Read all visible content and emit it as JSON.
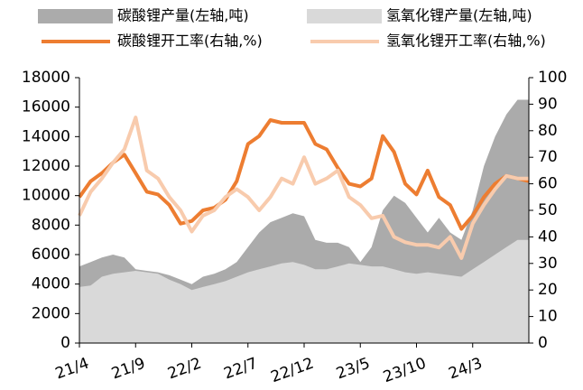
{
  "chart_data": {
    "type": "area-line",
    "categories": [
      "21/4",
      null,
      null,
      null,
      null,
      "21/9",
      null,
      null,
      null,
      null,
      "22/2",
      null,
      null,
      null,
      null,
      "22/7",
      null,
      null,
      null,
      null,
      "22/12",
      null,
      null,
      null,
      null,
      "23/5",
      null,
      null,
      null,
      null,
      "23/10",
      null,
      null,
      null,
      null,
      "24/3",
      null,
      null,
      null,
      null,
      null
    ],
    "series": [
      {
        "name": "碳酸锂产量(左轴,吨)",
        "kind": "area",
        "color": "#ababab",
        "axis": "y",
        "values": [
          5200,
          5500,
          5800,
          6000,
          5800,
          5000,
          4900,
          4800,
          4600,
          4300,
          4000,
          4500,
          4700,
          5000,
          5500,
          6500,
          7500,
          8200,
          8500,
          8800,
          8600,
          7000,
          6800,
          6800,
          6500,
          5500,
          6500,
          9000,
          10000,
          9500,
          8500,
          7500,
          8500,
          7500,
          7000,
          9000,
          12000,
          14000,
          15500,
          16500,
          16500
        ]
      },
      {
        "name": "氢氧化锂产量(左轴,吨)",
        "kind": "area",
        "color": "#d9d9d9",
        "axis": "y",
        "values": [
          3800,
          3900,
          4500,
          4700,
          4800,
          4900,
          4800,
          4700,
          4300,
          4000,
          3600,
          3800,
          4000,
          4200,
          4500,
          4800,
          5000,
          5200,
          5400,
          5500,
          5300,
          5000,
          5000,
          5200,
          5400,
          5300,
          5200,
          5200,
          5000,
          4800,
          4700,
          4800,
          4700,
          4600,
          4500,
          5000,
          5500,
          6000,
          6500,
          7000,
          7000
        ]
      },
      {
        "name": "碳酸锂开工率(右轴,%)",
        "kind": "line",
        "color": "#ed7d31",
        "axis": "y2",
        "values": [
          55,
          61,
          64,
          68,
          71,
          64,
          57,
          56,
          52,
          45,
          46,
          50,
          51,
          54,
          61,
          75,
          78,
          84,
          83,
          83,
          83,
          75,
          73,
          66,
          60,
          59,
          62,
          78,
          72,
          60,
          56,
          65,
          55,
          52,
          43,
          48,
          55,
          60,
          63,
          62,
          61
        ]
      },
      {
        "name": "氢氧化锂开工率(右轴,%)",
        "kind": "line",
        "color": "#f8cbad",
        "axis": "y2",
        "values": [
          48,
          57,
          62,
          68,
          73,
          85,
          65,
          62,
          55,
          50,
          42,
          48,
          50,
          55,
          58,
          55,
          50,
          55,
          62,
          60,
          70,
          60,
          62,
          65,
          55,
          52,
          47,
          48,
          40,
          38,
          37,
          37,
          36,
          40,
          32,
          45,
          52,
          58,
          63,
          62,
          62
        ]
      }
    ],
    "ylim": [
      0,
      18000
    ],
    "yticks": [
      0,
      2000,
      4000,
      6000,
      8000,
      10000,
      12000,
      14000,
      16000,
      18000
    ],
    "y2lim": [
      0,
      100
    ],
    "y2ticks": [
      0,
      10,
      20,
      30,
      40,
      50,
      60,
      70,
      80,
      90,
      100
    ]
  }
}
